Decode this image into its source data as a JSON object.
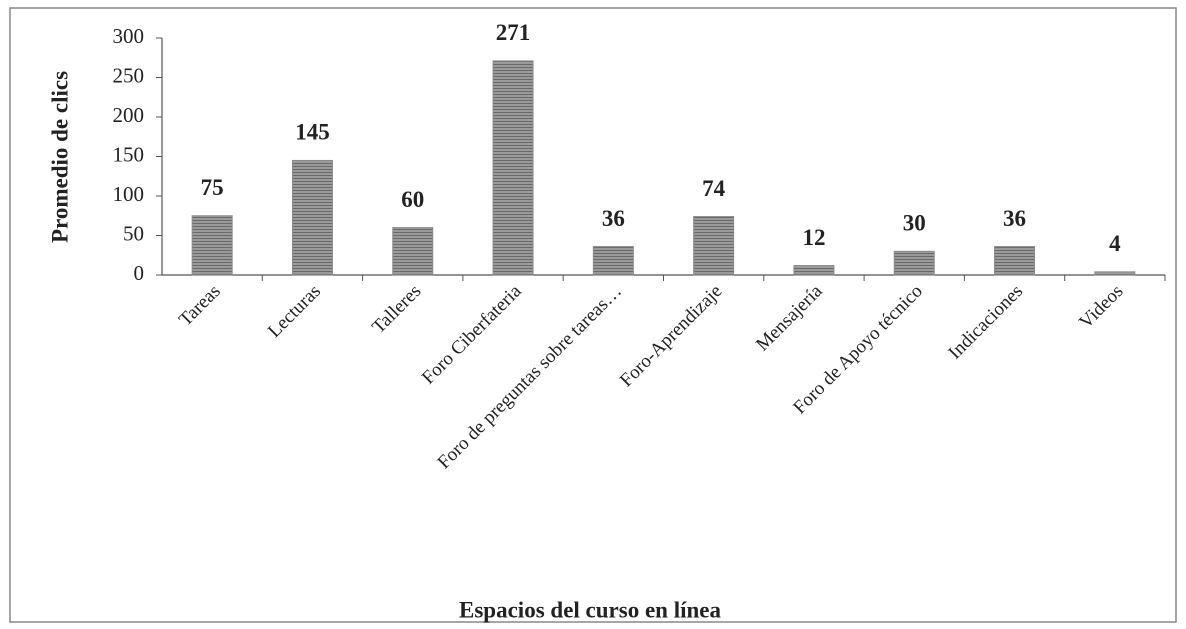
{
  "chart_data": {
    "type": "bar",
    "ylabel": "Promedio de clics",
    "xlabel": "Espacios del curso en línea",
    "categories": [
      "Tareas",
      "Lecturas",
      "Talleres",
      "Foro Ciberfateria",
      "Foro de preguntas sobre tareas…",
      "Foro-Aprendizaje",
      "Mensajería",
      "Foro de Apoyo técnico",
      "Indicaciones",
      "Videos"
    ],
    "values": [
      75,
      145,
      60,
      271,
      36,
      74,
      12,
      30,
      36,
      4
    ],
    "color": "#8c8c8c",
    "ylim": [
      0,
      300
    ],
    "yticks": [
      0,
      50,
      100,
      150,
      200,
      250,
      300
    ],
    "grid": false
  }
}
